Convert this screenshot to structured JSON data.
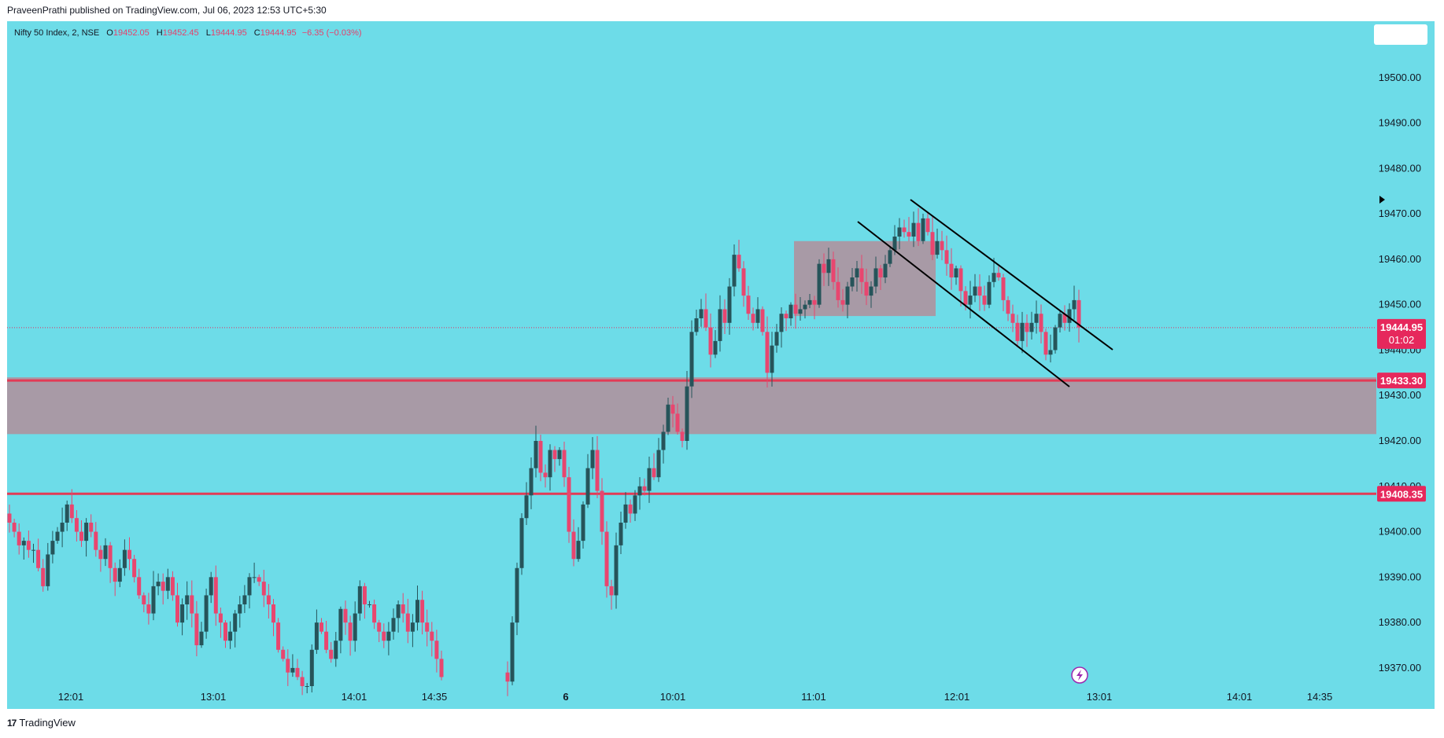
{
  "header": {
    "published_by": "PraveenPrathi published on TradingView.com, Jul 06, 2023 12:53 UTC+5:30"
  },
  "legend": {
    "symbol": "Nifty 50 Index, 2, NSE",
    "open_label": "O",
    "open": "19452.05",
    "high_label": "H",
    "high": "19452.45",
    "low_label": "L",
    "low": "19444.95",
    "close_label": "C",
    "close": "19444.95",
    "change": "−6.35 (−0.03%)"
  },
  "footer": {
    "logo_icon": "tradingview-logo-icon",
    "brand": "TradingView"
  },
  "colors": {
    "background": "#6ddce8",
    "bull": "#26545a",
    "bear": "#e8466f",
    "zone": "#a89aa6",
    "level_line": "#e23b55",
    "price_tag": "#e6285c"
  },
  "chart_data": {
    "type": "candlestick",
    "symbol": "Nifty 50 Index",
    "interval": "2",
    "exchange": "NSE",
    "ylim": [
      19366,
      19510
    ],
    "y_ticks": [
      19370,
      19380,
      19390,
      19400,
      19410,
      19420,
      19430,
      19440,
      19450,
      19460,
      19470,
      19480,
      19490,
      19500
    ],
    "x_ticks": [
      "12:01",
      "13:01",
      "14:01",
      "14:35",
      "6",
      "10:01",
      "11:01",
      "12:01",
      "13:01",
      "14:01",
      "14:35"
    ],
    "price_labels": {
      "last_price": "19444.95",
      "countdown": "01:02",
      "resistance_1": "19433.30",
      "support_1": "19408.35"
    },
    "zones": [
      {
        "name": "demand-zone",
        "from": 19421.5,
        "to": 19434
      },
      {
        "name": "consolidation-box",
        "from": 19447.5,
        "to": 19464
      }
    ],
    "horizontal_lines": [
      19433.3,
      19408.35
    ],
    "last_price": 19444.95,
    "trendlines": [
      {
        "from": [
          "11:44",
          19473
        ],
        "to": [
          "12:36",
          19440
        ]
      },
      {
        "from": [
          "11:17",
          19466
        ],
        "to": [
          "12:44",
          19433
        ]
      }
    ],
    "candles_session_1_close": [
      19402,
      19400,
      19397,
      19398,
      19396,
      19396,
      19392,
      19388,
      19395,
      19398,
      19400,
      19402,
      19406,
      19403,
      19400,
      19398,
      19402,
      19400,
      19396,
      19394,
      19397,
      19392,
      19389,
      19392,
      19396,
      19394,
      19390,
      19386,
      19384,
      19382,
      19388,
      19389,
      19387,
      19390,
      19386,
      19380,
      19384,
      19386,
      19382,
      19375,
      19378,
      19386,
      19390,
      19382,
      19380,
      19376,
      19378,
      19382,
      19384,
      19386,
      19390,
      19390,
      19389,
      19386,
      19384,
      19380,
      19374,
      19372,
      19369,
      19370,
      19368,
      19366,
      19366,
      19374,
      19380,
      19378,
      19374,
      19372,
      19376,
      19383,
      19380,
      19376,
      19382,
      19388,
      19384,
      19384,
      19380,
      19378,
      19376,
      19378,
      19381,
      19384,
      19382,
      19378,
      19380,
      19385,
      19380,
      19378,
      19376,
      19372,
      19368
    ],
    "candles_session_2_close": [
      19367,
      19380,
      19392,
      19403,
      19408,
      19414,
      19420,
      19413,
      19412,
      19418,
      19416,
      19418,
      19412,
      19400,
      19394,
      19398,
      19406,
      19414,
      19418,
      19409,
      19400,
      19388,
      19386,
      19397,
      19402,
      19406,
      19404,
      19408,
      19410,
      19409,
      19414,
      19412,
      19418,
      19422,
      19428,
      19426,
      19422,
      19420,
      19432,
      19444,
      19447,
      19449,
      19445,
      19439,
      19442,
      19449,
      19446,
      19454,
      19461,
      19458,
      19452,
      19448,
      19446,
      19449,
      19444,
      19435,
      19441,
      19444,
      19448,
      19447,
      19450,
      19448,
      19449,
      19450,
      19451,
      19450,
      19459,
      19457,
      19460,
      19455,
      19451,
      19450,
      19454,
      19456,
      19458,
      19455,
      19452,
      19454,
      19458,
      19456,
      19459,
      19462,
      19465,
      19467,
      19466,
      19465,
      19468,
      19464,
      19469,
      19466,
      19461,
      19464,
      19462,
      19459,
      19456,
      19458,
      19453,
      19450,
      19452,
      19454,
      19452,
      19450,
      19455,
      19457,
      19456,
      19451,
      19448,
      19446,
      19442,
      19446,
      19444,
      19446,
      19448,
      19444,
      19439,
      19440,
      19445,
      19448,
      19446,
      19449,
      19451,
      19445
    ]
  }
}
